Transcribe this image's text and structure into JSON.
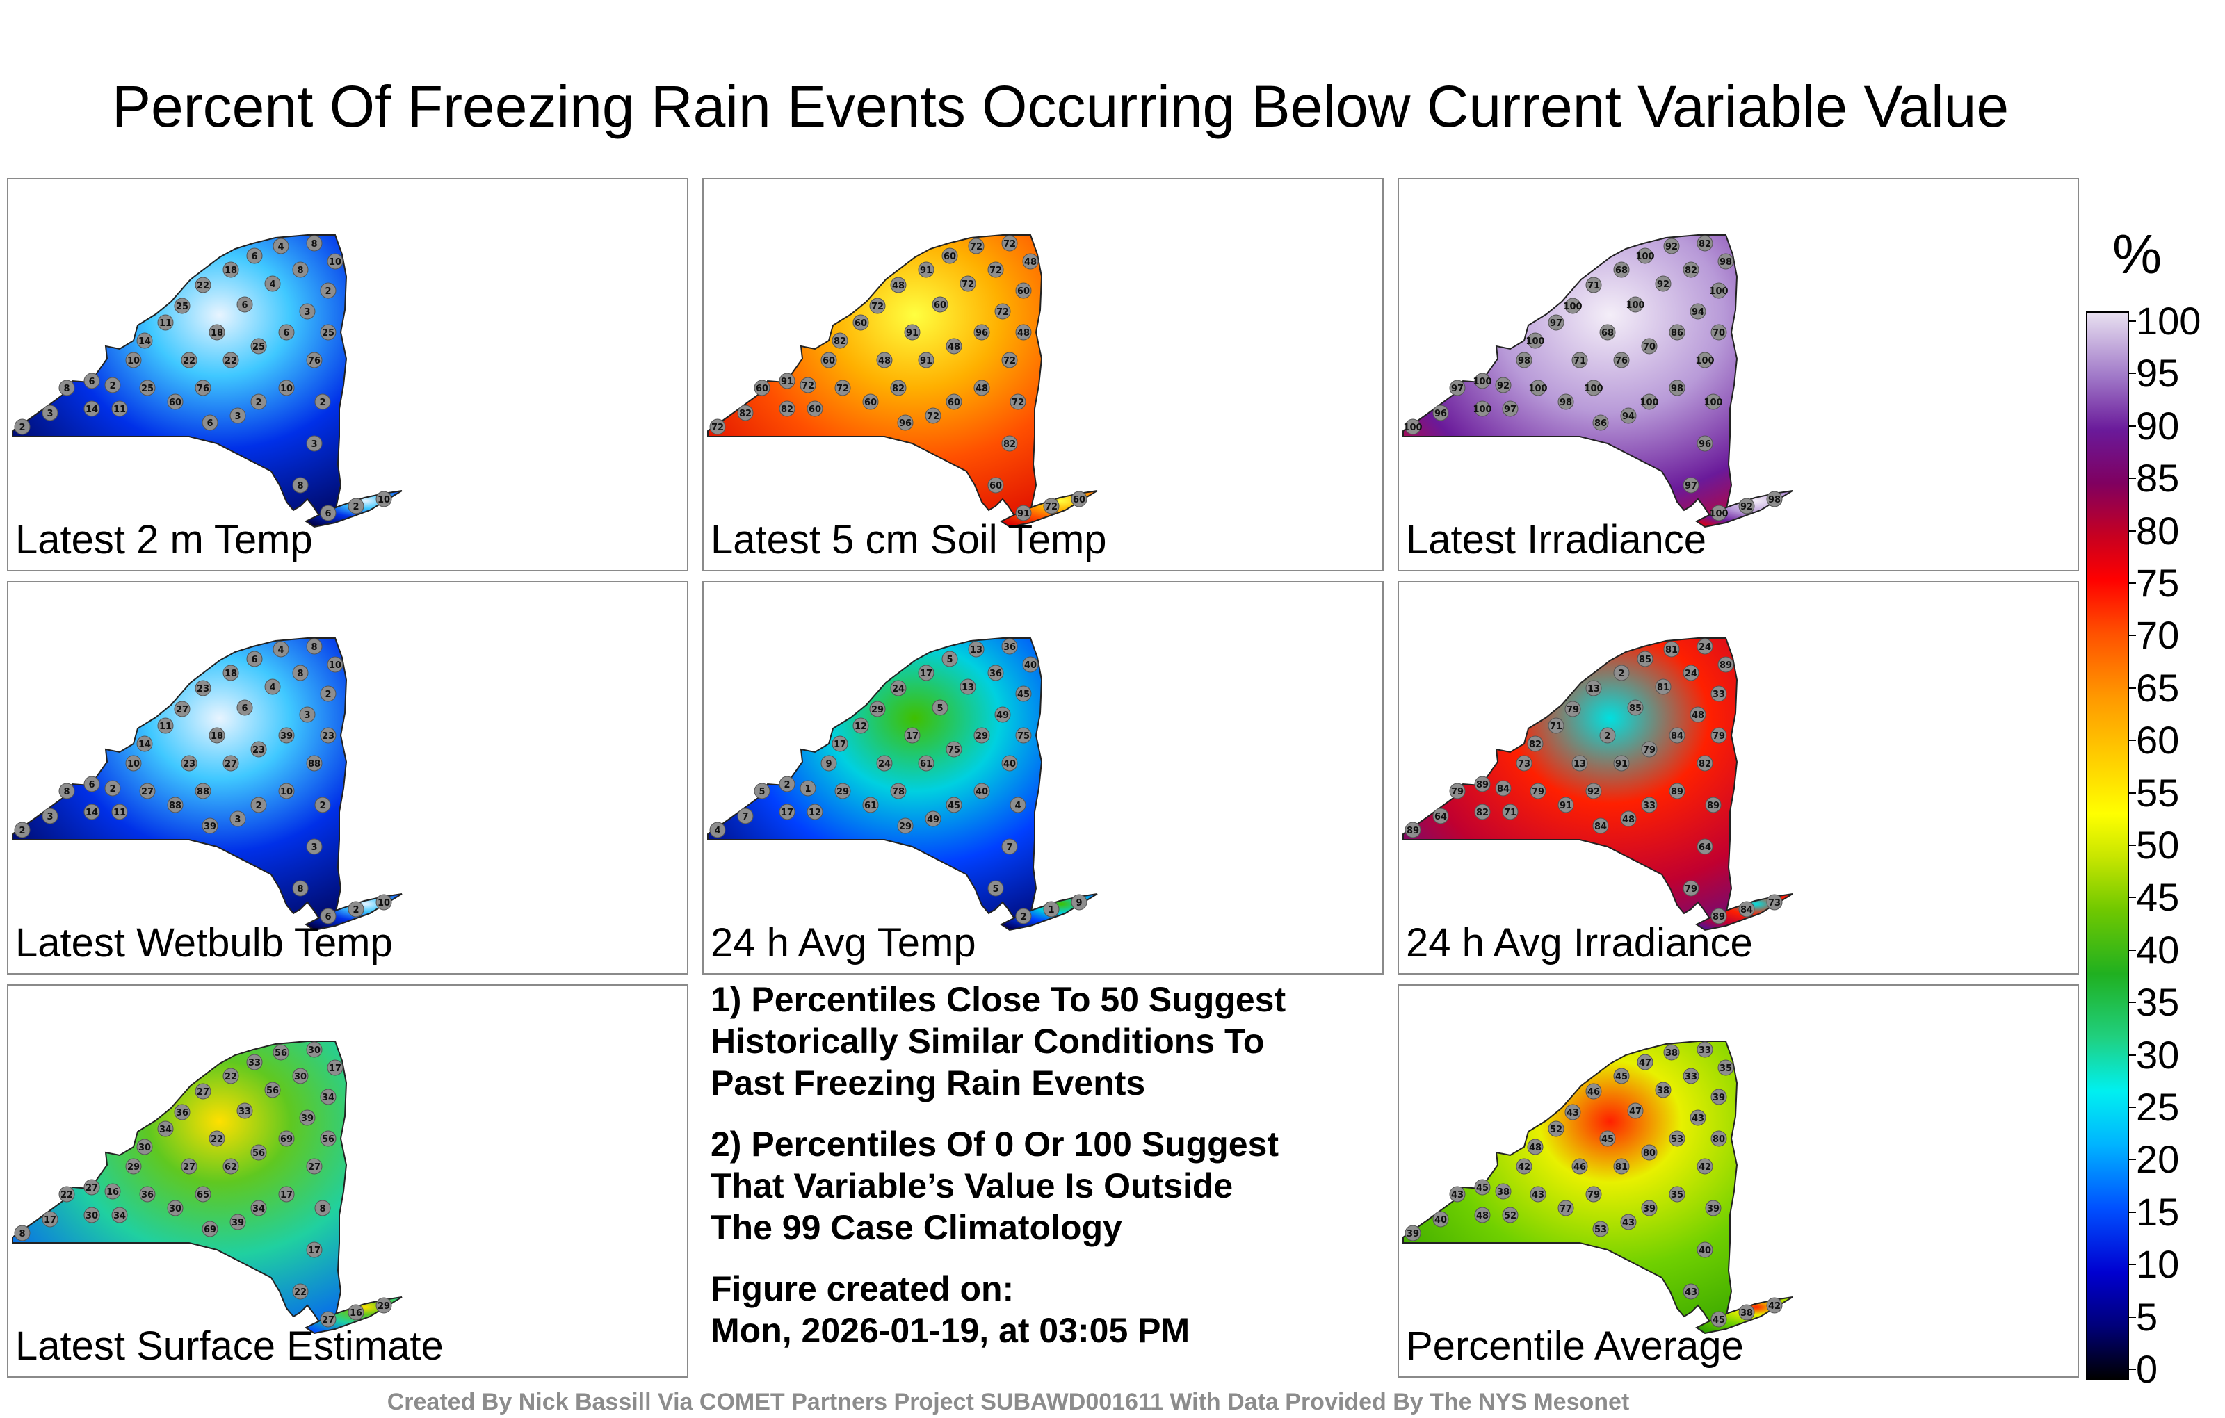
{
  "title": "Percent Of Freezing Rain Events Occurring Below Current Variable Value",
  "panels": [
    {
      "label": "Latest 2 m Temp",
      "scheme": "cold"
    },
    {
      "label": "Latest 5 cm Soil Temp",
      "scheme": "warm"
    },
    {
      "label": "Latest Irradiance",
      "scheme": "purple"
    },
    {
      "label": "Latest Wetbulb Temp",
      "scheme": "cold"
    },
    {
      "label": "24 h Avg Temp",
      "scheme": "coldgreen"
    },
    {
      "label": "24 h Avg Irradiance",
      "scheme": "mixed"
    },
    {
      "label": "Latest Surface Estimate",
      "scheme": "cyan"
    },
    {
      "label": "Percentile Average",
      "scheme": "green"
    }
  ],
  "station_values": [
    [
      "2",
      "3",
      "8",
      "6",
      "2",
      "10",
      "14",
      "11",
      "25",
      "22",
      "18",
      "6",
      "4",
      "8",
      "10",
      "2",
      "3",
      "6",
      "25",
      "22",
      "76",
      "60",
      "76"
    ],
    [
      "72",
      "82",
      "60",
      "91",
      "72",
      "60",
      "82",
      "60",
      "72",
      "48",
      "91",
      "60",
      "72",
      "72",
      "48",
      "60",
      "72",
      "96",
      "48",
      "91",
      "82",
      "60",
      "72"
    ],
    [
      "100",
      "96",
      "97",
      "100",
      "92",
      "98",
      "100",
      "97",
      "100",
      "71",
      "68",
      "100",
      "92",
      "82",
      "98",
      "100",
      "94",
      "86",
      "70",
      "76",
      "100",
      "98",
      "100"
    ],
    [
      "2",
      "3",
      "8",
      "6",
      "2",
      "10",
      "14",
      "11",
      "27",
      "23",
      "18",
      "6",
      "4",
      "8",
      "10",
      "2",
      "3",
      "39",
      "23",
      "27",
      "88",
      "88",
      "88"
    ],
    [
      "4",
      "7",
      "5",
      "2",
      "1",
      "9",
      "17",
      "12",
      "29",
      "24",
      "17",
      "5",
      "13",
      "36",
      "40",
      "45",
      "49",
      "29",
      "75",
      "61",
      "78",
      "61",
      "40"
    ],
    [
      "89",
      "64",
      "79",
      "89",
      "84",
      "73",
      "82",
      "71",
      "79",
      "13",
      "2",
      "85",
      "81",
      "24",
      "89",
      "33",
      "48",
      "84",
      "79",
      "91",
      "92",
      "91",
      "82"
    ],
    [
      "8",
      "17",
      "22",
      "27",
      "16",
      "29",
      "30",
      "34",
      "36",
      "27",
      "22",
      "33",
      "56",
      "30",
      "17",
      "34",
      "39",
      "69",
      "56",
      "62",
      "65",
      "30",
      "27"
    ],
    [
      "39",
      "40",
      "43",
      "45",
      "38",
      "42",
      "48",
      "52",
      "43",
      "46",
      "45",
      "47",
      "38",
      "33",
      "35",
      "39",
      "43",
      "53",
      "80",
      "81",
      "79",
      "77",
      "42"
    ]
  ],
  "notes": {
    "line1": "1) Percentiles Close To 50 Suggest",
    "line2": "Historically Similar Conditions To",
    "line3": "Past Freezing Rain Events",
    "line4": "2) Percentiles Of 0 Or 100 Suggest",
    "line5": "That Variable’s Value Is Outside",
    "line6": "The 99 Case Climatology",
    "line7": "Figure created on:",
    "line8": "Mon, 2026-01-19, at 03:05 PM"
  },
  "colorbar": {
    "unit": "%",
    "ticks": [
      "100",
      "95",
      "90",
      "85",
      "80",
      "75",
      "70",
      "65",
      "60",
      "55",
      "50",
      "45",
      "40",
      "35",
      "30",
      "25",
      "20",
      "15",
      "10",
      "5",
      "0"
    ]
  },
  "credit": "Created By Nick Bassill Via COMET Partners Project SUBAWD001611 With Data Provided By The NYS Mesonet"
}
